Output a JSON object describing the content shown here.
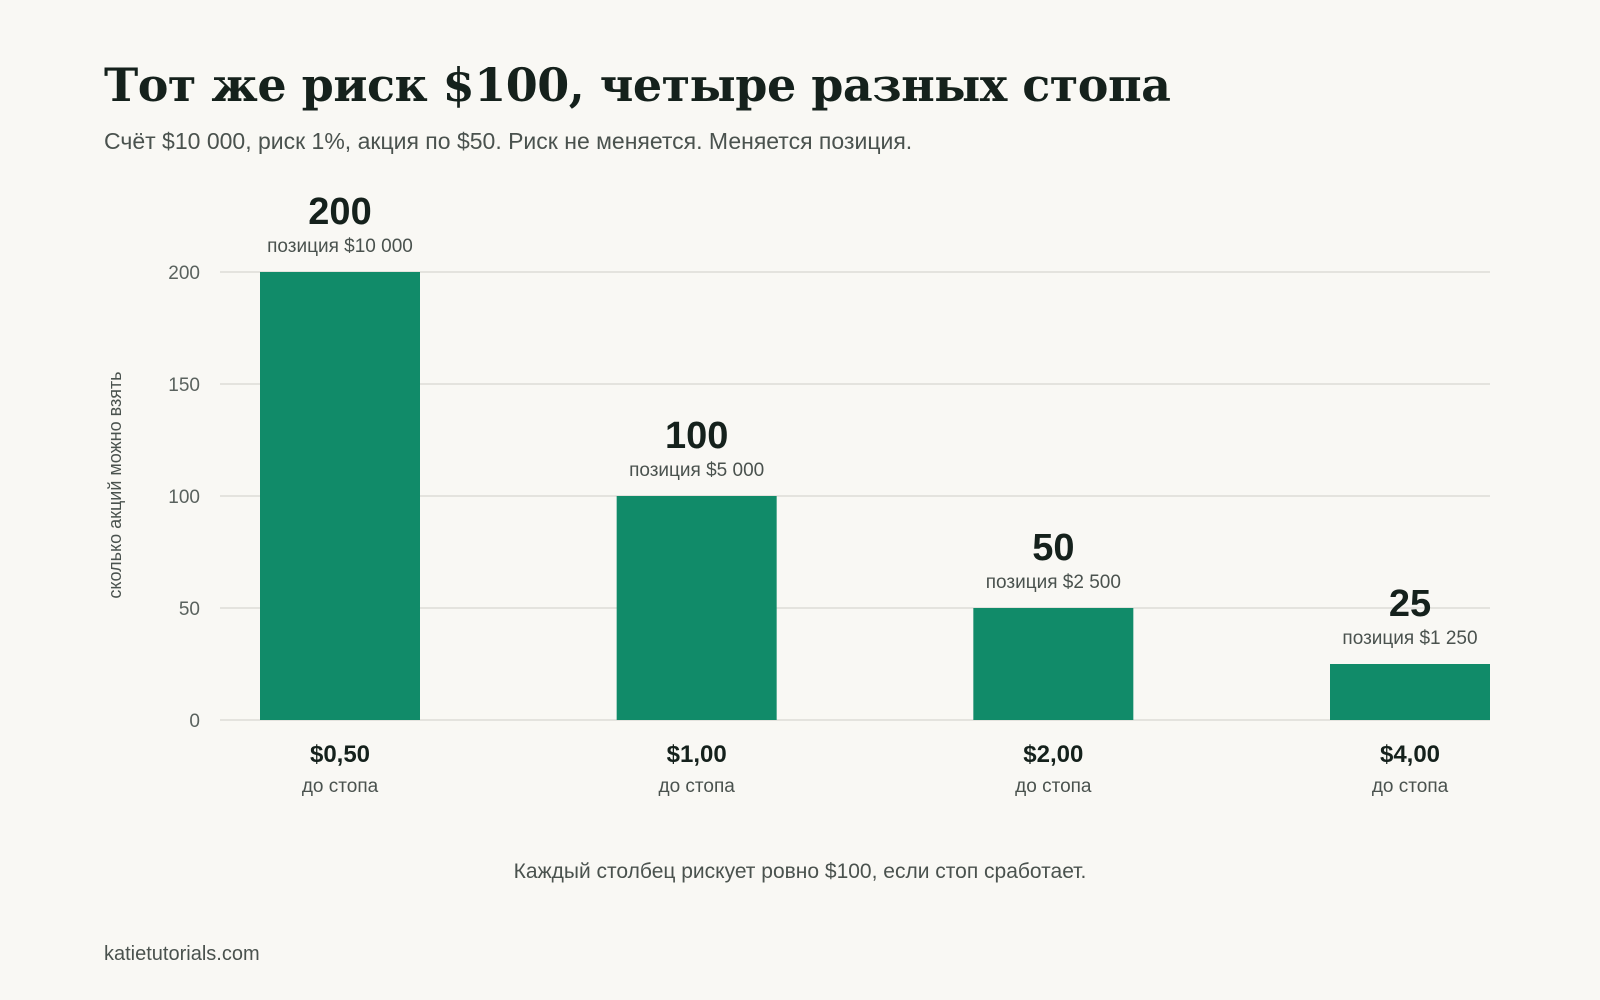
{
  "header": {
    "title": "Тот же риск $100, четыре разных стопа",
    "subtitle": "Счёт $10 000, риск 1%, акция по $50. Риск не меняется. Меняется позиция."
  },
  "footer": {
    "note": "Каждый столбец рискует ровно $100, если стоп сработает.",
    "brand": "katietutorials.com"
  },
  "colors": {
    "bar": "#118b69",
    "grid": "#dddcd6",
    "background": "#f9f8f4"
  },
  "chart_data": {
    "type": "bar",
    "ylabel": "сколько акций можно взять",
    "ylim": [
      0,
      200
    ],
    "yticks": [
      0,
      50,
      100,
      150,
      200
    ],
    "grid": true,
    "categories": [
      "$0,50",
      "$1,00",
      "$2,00",
      "$4,00"
    ],
    "category_sublabel": "до стопа",
    "values": [
      200,
      100,
      50,
      25
    ],
    "position_labels": [
      "позиция $10 000",
      "позиция $5 000",
      "позиция $2 500",
      "позиция $1 250"
    ]
  }
}
